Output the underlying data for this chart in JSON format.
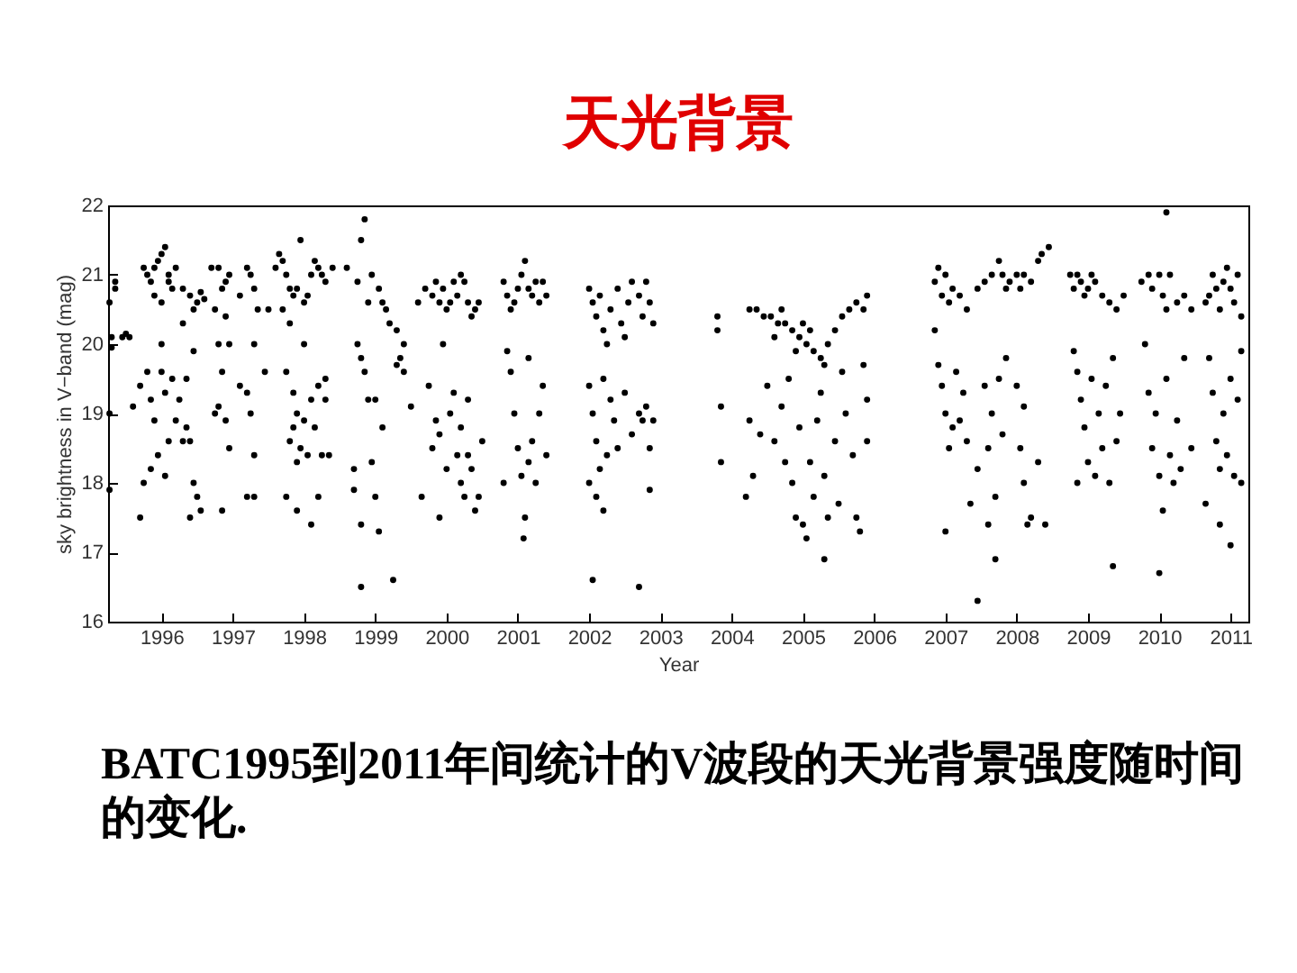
{
  "chart_data": {
    "type": "scatter",
    "title": "天光背景",
    "xlabel": "Year",
    "ylabel": "sky brightness in V−band (mag)",
    "annotations": [
      "BATC1995到2011年间统计的V波段的天光背景强度随时间的变化."
    ],
    "xlim": [
      1995.25,
      2011.25
    ],
    "ylim": [
      16,
      22
    ],
    "xticks": [
      1996,
      1997,
      1998,
      1999,
      2000,
      2001,
      2002,
      2003,
      2004,
      2005,
      2006,
      2007,
      2008,
      2009,
      2010,
      2011
    ],
    "yticks": [
      16,
      17,
      18,
      19,
      20,
      21,
      22
    ],
    "grid": false,
    "marker": "circle",
    "series": [
      {
        "color": "#000000",
        "x": [
          1995.27,
          1995.35,
          1995.35,
          1995.3,
          1995.3,
          1995.27,
          1995.27,
          1995.45,
          1995.55,
          1995.5,
          1995.6,
          1995.75,
          1995.8,
          1995.85,
          1995.9,
          1995.95,
          1996.0,
          1996.05,
          1996.1,
          1996.15,
          1995.9,
          1996.0,
          1996.1,
          1996.2,
          1996.3,
          1996.4,
          1996.5,
          1996.55,
          1996.6,
          1996.45,
          1995.7,
          1995.8,
          1995.85,
          1995.9,
          1995.95,
          1996.0,
          1996.05,
          1996.1,
          1996.15,
          1996.0,
          1996.2,
          1996.25,
          1996.3,
          1996.35,
          1996.4,
          1996.45,
          1996.5,
          1996.55,
          1996.4,
          1995.75,
          1995.7,
          1996.05,
          1995.85,
          1996.3,
          1996.35,
          1996.45,
          1996.7,
          1996.8,
          1996.9,
          1996.95,
          1996.85,
          1996.75,
          1996.9,
          1996.8,
          1996.95,
          1996.85,
          1996.8,
          1996.9,
          1996.95,
          1996.75,
          1996.85,
          1997.1,
          1997.2,
          1997.25,
          1997.3,
          1997.35,
          1997.3,
          1997.2,
          1997.3,
          1997.25,
          1997.1,
          1997.2,
          1997.3,
          1997.5,
          1997.45,
          1997.6,
          1997.65,
          1997.7,
          1997.75,
          1997.8,
          1997.85,
          1997.9,
          1998.0,
          1998.05,
          1998.1,
          1998.15,
          1998.2,
          1998.25,
          1998.3,
          1998.4,
          1997.95,
          1997.7,
          1997.75,
          1997.8,
          1997.85,
          1997.9,
          1997.8,
          1997.85,
          1997.9,
          1997.95,
          1998.0,
          1998.05,
          1998.1,
          1998.15,
          1998.2,
          1998.25,
          1998.3,
          1998.35,
          1998.1,
          1997.9,
          1997.75,
          1998.2,
          1998.3,
          1998.0,
          1998.6,
          1998.75,
          1998.8,
          1998.85,
          1998.9,
          1998.95,
          1999.05,
          1999.1,
          1999.15,
          1999.2,
          1999.3,
          1999.4,
          1999.35,
          1999.3,
          1999.4,
          1998.75,
          1998.8,
          1998.85,
          1998.9,
          1998.7,
          1998.8,
          1998.8,
          1998.95,
          1999.0,
          1999.05,
          1999.1,
          1999.0,
          1999.25,
          1998.7,
          1999.5,
          1999.6,
          1999.7,
          1999.8,
          1999.85,
          1999.9,
          1999.95,
          2000.0,
          2000.05,
          2000.1,
          2000.15,
          2000.2,
          2000.25,
          2000.3,
          2000.35,
          2000.4,
          2000.45,
          1999.75,
          1999.8,
          1999.85,
          1999.9,
          1999.95,
          2000.0,
          2000.05,
          2000.1,
          2000.15,
          2000.2,
          2000.25,
          2000.3,
          2000.35,
          2000.4,
          2000.45,
          2000.5,
          2000.3,
          1999.65,
          1999.9,
          2000.2,
          2000.8,
          2000.85,
          2000.9,
          2000.95,
          2001.0,
          2001.05,
          2001.1,
          2001.15,
          2001.2,
          2001.25,
          2001.3,
          2001.35,
          2001.4,
          2000.85,
          2000.9,
          2000.95,
          2001.0,
          2001.05,
          2001.1,
          2001.08,
          2001.15,
          2001.2,
          2001.25,
          2001.3,
          2001.35,
          2001.4,
          2000.8,
          2001.15,
          2002.0,
          2002.05,
          2002.1,
          2002.15,
          2002.2,
          2002.25,
          2002.3,
          2002.4,
          2002.45,
          2002.5,
          2002.55,
          2002.6,
          2002.7,
          2002.75,
          2002.8,
          2002.85,
          2002.9,
          2002.0,
          2002.05,
          2002.1,
          2002.15,
          2002.2,
          2002.25,
          2002.3,
          2002.35,
          2002.4,
          2002.5,
          2002.6,
          2002.7,
          2002.75,
          2002.8,
          2002.85,
          2002.9,
          2002.0,
          2002.1,
          2002.2,
          2002.05,
          2002.7,
          2002.85,
          2003.8,
          2003.8,
          2003.85,
          2003.85,
          2004.25,
          2004.35,
          2004.45,
          2004.55,
          2004.65,
          2004.75,
          2004.85,
          2004.95,
          2005.05,
          2005.15,
          2005.25,
          2005.35,
          2005.45,
          2005.55,
          2005.65,
          2005.75,
          2005.85,
          2005.9,
          2004.6,
          2004.9,
          2005.1,
          2005.0,
          2005.3,
          2004.7,
          2004.25,
          2004.3,
          2004.2,
          2004.4,
          2004.5,
          2004.6,
          2004.7,
          2004.75,
          2004.8,
          2004.85,
          2004.9,
          2004.95,
          2005.0,
          2005.05,
          2005.1,
          2005.15,
          2005.2,
          2005.25,
          2005.3,
          2005.35,
          2005.3,
          2005.45,
          2005.5,
          2005.55,
          2005.6,
          2005.7,
          2005.75,
          2005.8,
          2005.85,
          2005.9,
          2005.9,
          2006.85,
          2006.9,
          2006.95,
          2007.0,
          2007.05,
          2007.1,
          2007.2,
          2007.3,
          2007.45,
          2007.55,
          2007.65,
          2007.75,
          2007.8,
          2007.85,
          2007.9,
          2006.85,
          2006.9,
          2006.95,
          2007.0,
          2007.05,
          2007.1,
          2007.15,
          2007.2,
          2007.25,
          2007.3,
          2007.35,
          2007.45,
          2007.55,
          2007.6,
          2007.65,
          2007.7,
          2007.75,
          2007.8,
          2007.85,
          2007.0,
          2007.45,
          2007.6,
          2007.7,
          2008.0,
          2008.05,
          2008.1,
          2008.2,
          2008.3,
          2008.35,
          2008.45,
          2008.0,
          2008.05,
          2008.1,
          2008.15,
          2008.2,
          2008.1,
          2008.3,
          2008.4,
          2008.75,
          2008.8,
          2008.85,
          2008.9,
          2008.95,
          2009.0,
          2009.05,
          2009.1,
          2009.2,
          2009.3,
          2009.4,
          2009.5,
          2008.8,
          2008.85,
          2008.9,
          2008.95,
          2009.0,
          2009.05,
          2009.1,
          2009.15,
          2009.2,
          2009.25,
          2009.3,
          2009.35,
          2009.4,
          2009.45,
          2009.35,
          2008.85,
          2009.75,
          2009.85,
          2009.9,
          2010.0,
          2010.05,
          2010.1,
          2010.15,
          2010.25,
          2010.35,
          2010.45,
          2009.8,
          2009.85,
          2009.9,
          2009.95,
          2010.0,
          2010.05,
          2010.1,
          2010.15,
          2010.2,
          2010.25,
          2010.3,
          2010.35,
          2010.45,
          2010.0,
          2010.1,
          2010.65,
          2010.7,
          2010.75,
          2010.8,
          2010.85,
          2010.9,
          2010.95,
          2011.0,
          2011.05,
          2011.1,
          2011.15,
          2010.7,
          2010.75,
          2010.8,
          2010.85,
          2010.9,
          2010.95,
          2011.0,
          2011.05,
          2011.1,
          2011.15,
          2010.65,
          2010.85,
          2011.0,
          2011.15
        ],
        "values": [
          20.6,
          20.8,
          20.9,
          19.95,
          20.1,
          19.0,
          17.9,
          20.1,
          20.1,
          20.15,
          19.1,
          21.1,
          21.0,
          20.9,
          21.1,
          21.2,
          21.3,
          21.4,
          21.0,
          20.8,
          20.7,
          20.6,
          20.9,
          21.1,
          20.8,
          20.7,
          20.6,
          20.75,
          20.65,
          20.5,
          19.4,
          19.6,
          19.2,
          18.9,
          18.4,
          19.6,
          19.3,
          18.6,
          19.5,
          20.0,
          18.9,
          19.2,
          18.6,
          18.8,
          18.6,
          18.0,
          17.8,
          17.6,
          17.5,
          18.0,
          17.5,
          18.1,
          18.2,
          20.3,
          19.5,
          19.9,
          21.1,
          21.1,
          20.9,
          21.0,
          20.8,
          20.5,
          20.4,
          20.0,
          20.0,
          19.6,
          19.1,
          18.9,
          18.5,
          19.0,
          17.6,
          20.7,
          21.1,
          21.0,
          20.8,
          20.5,
          20.0,
          19.3,
          18.4,
          19.0,
          19.4,
          17.8,
          17.8,
          20.5,
          19.6,
          21.1,
          21.3,
          21.2,
          21.0,
          20.8,
          20.7,
          20.8,
          20.6,
          20.7,
          21.0,
          21.2,
          21.1,
          21.0,
          20.9,
          21.1,
          21.5,
          20.5,
          19.6,
          20.3,
          19.3,
          19.0,
          18.6,
          18.8,
          18.3,
          18.5,
          18.9,
          18.4,
          19.2,
          18.8,
          19.4,
          18.4,
          19.2,
          18.4,
          17.4,
          17.6,
          17.8,
          17.8,
          19.5,
          20.0,
          21.1,
          20.9,
          21.5,
          21.8,
          20.6,
          21.0,
          20.8,
          20.6,
          20.5,
          20.3,
          20.2,
          20.0,
          19.8,
          19.7,
          19.6,
          20.0,
          19.8,
          19.6,
          19.2,
          18.2,
          17.4,
          16.5,
          18.3,
          17.8,
          17.3,
          18.8,
          19.2,
          16.6,
          17.9,
          19.1,
          20.6,
          20.8,
          20.7,
          20.9,
          20.6,
          20.8,
          20.5,
          20.6,
          20.9,
          20.7,
          21.0,
          20.9,
          20.6,
          20.4,
          20.5,
          20.6,
          19.4,
          18.5,
          18.9,
          18.7,
          20.0,
          18.2,
          19.0,
          19.3,
          18.4,
          18.8,
          17.8,
          18.4,
          18.2,
          17.6,
          17.8,
          18.6,
          19.2,
          17.8,
          17.5,
          18.0,
          20.9,
          20.7,
          20.5,
          20.6,
          20.8,
          21.0,
          21.2,
          20.8,
          20.7,
          20.9,
          20.6,
          20.9,
          20.7,
          19.9,
          19.6,
          19.0,
          18.5,
          18.1,
          17.5,
          17.2,
          18.3,
          18.6,
          18.0,
          19.0,
          19.4,
          18.4,
          18.0,
          19.8,
          20.8,
          20.6,
          20.4,
          20.7,
          20.2,
          20.0,
          20.5,
          20.8,
          20.3,
          20.1,
          20.6,
          20.9,
          20.7,
          20.4,
          20.9,
          20.6,
          20.3,
          19.4,
          19.0,
          18.6,
          18.2,
          19.5,
          18.4,
          19.2,
          18.9,
          18.5,
          19.3,
          18.7,
          19.0,
          18.9,
          19.1,
          18.5,
          18.9,
          18.0,
          17.8,
          17.6,
          16.6,
          16.5,
          17.9,
          20.4,
          20.2,
          19.1,
          18.3,
          20.5,
          20.5,
          20.4,
          20.4,
          20.3,
          20.3,
          20.2,
          20.1,
          20.0,
          19.9,
          19.8,
          20.0,
          20.2,
          20.4,
          20.5,
          20.6,
          20.5,
          20.7,
          20.1,
          19.9,
          20.2,
          20.3,
          19.7,
          20.5,
          18.9,
          18.1,
          17.8,
          18.7,
          19.4,
          18.6,
          19.1,
          18.3,
          19.5,
          18.0,
          17.5,
          18.8,
          17.4,
          17.2,
          18.3,
          17.8,
          18.9,
          19.3,
          18.1,
          17.5,
          16.9,
          18.6,
          17.7,
          19.6,
          19.0,
          18.4,
          17.5,
          17.3,
          19.7,
          18.6,
          19.2,
          20.9,
          21.1,
          20.7,
          21.0,
          20.6,
          20.8,
          20.7,
          20.5,
          20.8,
          20.9,
          21.0,
          21.2,
          21.0,
          20.8,
          20.9,
          20.2,
          19.7,
          19.4,
          19.0,
          18.5,
          18.8,
          19.6,
          18.9,
          19.3,
          18.6,
          17.7,
          18.2,
          19.4,
          18.5,
          19.0,
          17.8,
          19.5,
          18.7,
          19.8,
          17.3,
          16.3,
          17.4,
          16.9,
          21.0,
          20.8,
          21.0,
          20.9,
          21.2,
          21.3,
          21.4,
          19.4,
          18.5,
          18.0,
          17.4,
          17.5,
          19.1,
          18.3,
          17.4,
          21.0,
          20.8,
          21.0,
          20.9,
          20.7,
          20.8,
          21.0,
          20.9,
          20.7,
          20.6,
          20.5,
          20.7,
          19.9,
          19.6,
          19.2,
          18.8,
          18.3,
          19.5,
          18.1,
          19.0,
          18.5,
          19.4,
          18.0,
          19.8,
          18.6,
          19.0,
          16.8,
          18.0,
          20.9,
          21.0,
          20.8,
          21.0,
          20.7,
          20.5,
          21.0,
          20.6,
          20.7,
          20.5,
          20.0,
          19.3,
          18.5,
          19.0,
          18.1,
          17.6,
          19.5,
          18.4,
          18.0,
          18.9,
          18.2,
          19.8,
          18.5,
          16.7,
          21.9,
          20.6,
          20.7,
          21.0,
          20.8,
          20.5,
          20.9,
          21.1,
          20.8,
          20.6,
          21.0,
          20.4,
          19.8,
          19.3,
          18.6,
          18.2,
          19.0,
          18.4,
          19.5,
          18.1,
          19.2,
          19.9,
          17.7,
          17.4,
          17.1,
          18.0
        ]
      }
    ]
  }
}
